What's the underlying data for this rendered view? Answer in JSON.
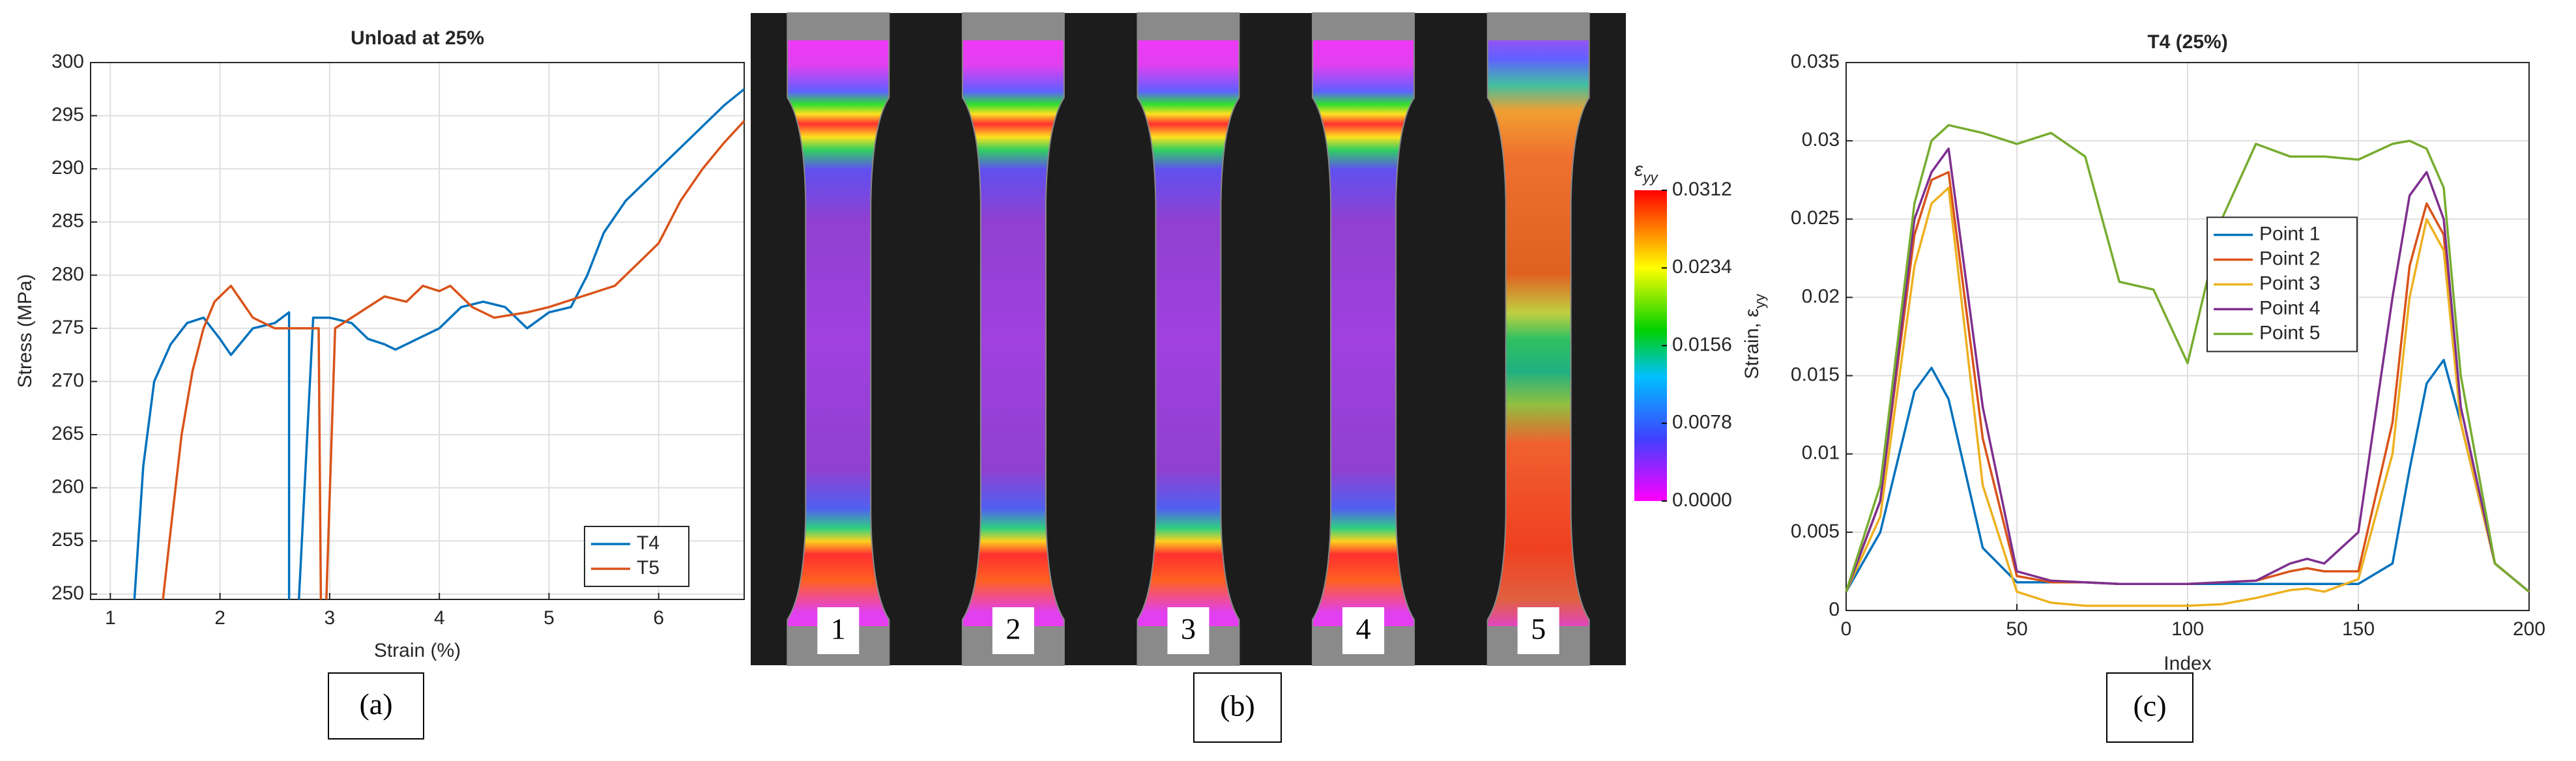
{
  "chart_data": [
    {
      "type": "line",
      "title": "Unload at 25%",
      "x_label": "Strain (%)",
      "y_label": "Stress (MPa)",
      "caption": "(a)",
      "xlim": [
        0.82,
        6.78
      ],
      "ylim": [
        249.5,
        300
      ],
      "xticks": [
        1,
        2,
        3,
        4,
        5,
        6
      ],
      "yticks": [
        250,
        255,
        260,
        265,
        270,
        275,
        280,
        285,
        290,
        295,
        300
      ],
      "grid": true,
      "legend": "lower right",
      "series": [
        {
          "name": "T4",
          "color": "#0072BD",
          "x": [
            1.22,
            1.3,
            1.4,
            1.55,
            1.7,
            1.85,
            2.0,
            2.1,
            2.3,
            2.5,
            2.63,
            2.63,
            2.7,
            2.72,
            2.85,
            3.0,
            3.2,
            3.35,
            3.5,
            3.6,
            3.8,
            4.0,
            4.2,
            4.4,
            4.6,
            4.8,
            5.0,
            5.2,
            5.35,
            5.5,
            5.7,
            6.0,
            6.3,
            6.6,
            6.78
          ],
          "values": [
            249.5,
            262,
            270,
            273.5,
            275.5,
            276,
            274,
            272.5,
            275,
            275.5,
            276.5,
            249.5,
            null,
            249.5,
            276,
            276,
            275.5,
            274,
            273.5,
            273,
            274,
            275,
            277,
            277.5,
            277,
            275,
            276.5,
            277,
            280,
            284,
            287,
            290,
            293,
            296,
            297.5
          ]
        },
        {
          "name": "T5",
          "color": "#D95319",
          "x": [
            1.48,
            1.55,
            1.65,
            1.75,
            1.85,
            1.95,
            2.05,
            2.1,
            2.3,
            2.5,
            2.7,
            2.9,
            2.92,
            2.95,
            2.97,
            3.05,
            3.2,
            3.5,
            3.7,
            3.85,
            4.0,
            4.1,
            4.3,
            4.5,
            4.8,
            5.0,
            5.3,
            5.6,
            5.9,
            6.0,
            6.2,
            6.4,
            6.6,
            6.78
          ],
          "values": [
            249.5,
            256,
            265,
            271,
            275,
            277.5,
            278.5,
            279,
            276,
            275,
            275,
            275,
            249.5,
            null,
            249.5,
            275,
            276,
            278,
            277.5,
            279,
            278.5,
            279,
            277,
            276,
            276.5,
            277,
            278,
            279,
            282,
            283,
            287,
            290,
            292.5,
            294.5
          ]
        }
      ]
    },
    {
      "type": "image",
      "caption": "(b)",
      "labels": [
        "1",
        "2",
        "3",
        "4",
        "5"
      ],
      "colorbar_label": "ε_yy",
      "clim": [
        0,
        0.0312
      ],
      "cticks": [
        0.0312,
        0.0234,
        0.0156,
        0.0078,
        {
          "value": 0,
          "label": "0.0000"
        }
      ]
    },
    {
      "type": "line",
      "title": "T4 (25%)",
      "x_label": "Index",
      "y_label": "Strain, ε_yy",
      "caption": "(c)",
      "xlim": [
        0,
        200
      ],
      "ylim": [
        0,
        0.035
      ],
      "xticks": [
        0,
        50,
        100,
        150,
        200
      ],
      "yticks": [
        0,
        0.005,
        0.01,
        0.015,
        0.02,
        0.025,
        0.03,
        0.035
      ],
      "grid": true,
      "legend": "center",
      "x": [
        0,
        10,
        20,
        25,
        30,
        40,
        50,
        60,
        70,
        80,
        90,
        100,
        110,
        120,
        130,
        135,
        140,
        150,
        160,
        165,
        170,
        175,
        180,
        190,
        200
      ],
      "series": [
        {
          "name": "Point 1",
          "color": "#0072BD",
          "values": [
            0.0012,
            0.005,
            0.014,
            0.0155,
            0.0135,
            0.004,
            0.0018,
            0.0018,
            0.0018,
            0.0017,
            0.0017,
            0.0017,
            0.0017,
            0.0017,
            0.0017,
            0.0017,
            0.0017,
            0.0017,
            0.003,
            0.009,
            0.0145,
            0.016,
            0.012,
            0.003,
            0.0012
          ]
        },
        {
          "name": "Point 2",
          "color": "#D95319",
          "values": [
            0.0012,
            0.007,
            0.024,
            0.0275,
            0.028,
            0.011,
            0.0022,
            0.0018,
            0.0018,
            0.0017,
            0.0017,
            0.0017,
            0.0018,
            0.0019,
            0.0025,
            0.0027,
            0.0025,
            0.0025,
            0.012,
            0.022,
            0.026,
            0.024,
            0.012,
            0.003,
            0.0012
          ]
        },
        {
          "name": "Point 3",
          "color": "#EDB120",
          "values": [
            0.0012,
            0.006,
            0.022,
            0.026,
            0.027,
            0.008,
            0.0012,
            0.0005,
            0.0003,
            0.0003,
            0.0003,
            0.0003,
            0.0004,
            0.0008,
            0.0013,
            0.0014,
            0.0012,
            0.002,
            0.01,
            0.02,
            0.025,
            0.023,
            0.012,
            0.003,
            0.0012
          ]
        },
        {
          "name": "Point 4",
          "color": "#7E2F8E",
          "values": [
            0.0012,
            0.007,
            0.025,
            0.028,
            0.0295,
            0.013,
            0.0025,
            0.0019,
            0.0018,
            0.0017,
            0.0017,
            0.0017,
            0.0018,
            0.0019,
            0.003,
            0.0033,
            0.003,
            0.005,
            0.02,
            0.0265,
            0.028,
            0.025,
            0.013,
            0.003,
            0.0012
          ]
        },
        {
          "name": "Point 5",
          "color": "#77AC30",
          "values": [
            0.0012,
            0.008,
            0.026,
            0.03,
            0.031,
            0.0305,
            0.0298,
            0.0305,
            0.029,
            0.021,
            0.0205,
            0.0158,
            0.025,
            0.0298,
            0.029,
            0.029,
            0.029,
            0.0288,
            0.0298,
            0.03,
            0.0295,
            0.027,
            0.015,
            0.003,
            0.0012
          ]
        }
      ]
    }
  ]
}
